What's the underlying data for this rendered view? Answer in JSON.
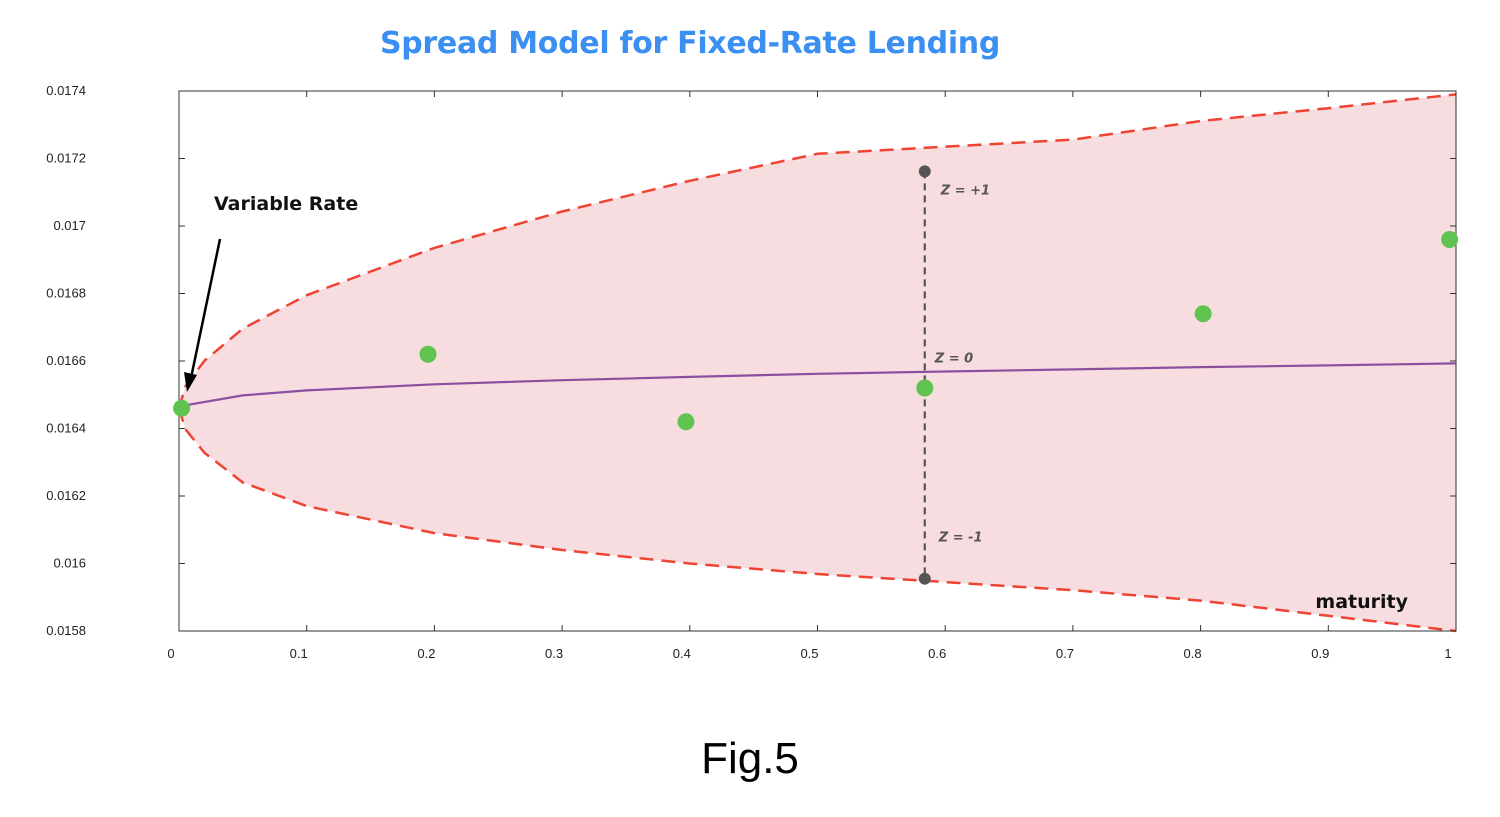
{
  "chart_data": {
    "type": "scatter",
    "title": "Spread Model for Fixed-Rate Lending",
    "xlabel": "maturity",
    "ylabel": "",
    "xlim": [
      0,
      1
    ],
    "ylim": [
      0.0158,
      0.0174
    ],
    "x_ticks": [
      "0",
      "0.1",
      "0.2",
      "0.3",
      "0.4",
      "0.5",
      "0.6",
      "0.7",
      "0.8",
      "0.9",
      "1"
    ],
    "y_ticks": [
      "0.0158",
      "0.016",
      "0.0162",
      "0.0164",
      "0.0166",
      "0.0168",
      "0.017",
      "0.0172",
      "0.0174"
    ],
    "grid": false,
    "series": [
      {
        "name": "",
        "kind": "points",
        "color": "#5ec44f",
        "x": [
          0.002,
          0.195,
          0.397,
          0.584,
          0.802,
          0.995
        ],
        "y": [
          0.01646,
          0.01662,
          0.01642,
          0.01652,
          0.01674,
          0.01696
        ]
      },
      {
        "name": "",
        "kind": "center-line",
        "color": "#8b4fa0",
        "x": [
          0.002,
          0.05,
          0.1,
          0.2,
          0.3,
          0.4,
          0.5,
          0.6,
          0.7,
          0.8,
          0.9,
          1.0
        ],
        "y": [
          0.016467,
          0.016498,
          0.016513,
          0.016531,
          0.016543,
          0.016553,
          0.016562,
          0.016569,
          0.016575,
          0.016582,
          0.016587,
          0.016593
        ]
      },
      {
        "name": "",
        "kind": "upper-band",
        "color": "#ee4433",
        "x": [
          0.0,
          0.005,
          0.02,
          0.05,
          0.1,
          0.2,
          0.3,
          0.4,
          0.5,
          0.584,
          0.7,
          0.8,
          0.9,
          1.0
        ],
        "y": [
          0.01646,
          0.016525,
          0.016601,
          0.016696,
          0.016795,
          0.016935,
          0.017043,
          0.017134,
          0.017214,
          0.017162,
          0.017256,
          0.017311,
          0.017349,
          0.01739
        ]
      },
      {
        "name": "",
        "kind": "lower-band",
        "color": "#ee4433",
        "x": [
          0.0,
          0.005,
          0.02,
          0.05,
          0.1,
          0.2,
          0.3,
          0.4,
          0.5,
          0.584,
          0.7,
          0.8,
          0.9,
          1.0
        ],
        "y": [
          0.01646,
          0.016398,
          0.016328,
          0.01624,
          0.01617,
          0.01609,
          0.01604,
          0.016,
          0.015969,
          0.015955,
          0.015921,
          0.01589,
          0.015845,
          0.0158
        ]
      }
    ],
    "annotations": [
      {
        "text": "Variable Rate",
        "kind": "arrow-label"
      },
      {
        "text": "Z = +1",
        "x": 0.584,
        "y": 0.017162
      },
      {
        "text": "Z = 0",
        "x": 0.584,
        "y": 0.016569
      },
      {
        "text": "Z = -1",
        "x": 0.584,
        "y": 0.015955
      }
    ],
    "marker_line": {
      "x": 0.584,
      "y_top": 0.017162,
      "y_bottom": 0.015955
    }
  },
  "caption": "Fig.5",
  "colors": {
    "band_fill": "#f7dde0",
    "title": "#3b8ff0"
  }
}
